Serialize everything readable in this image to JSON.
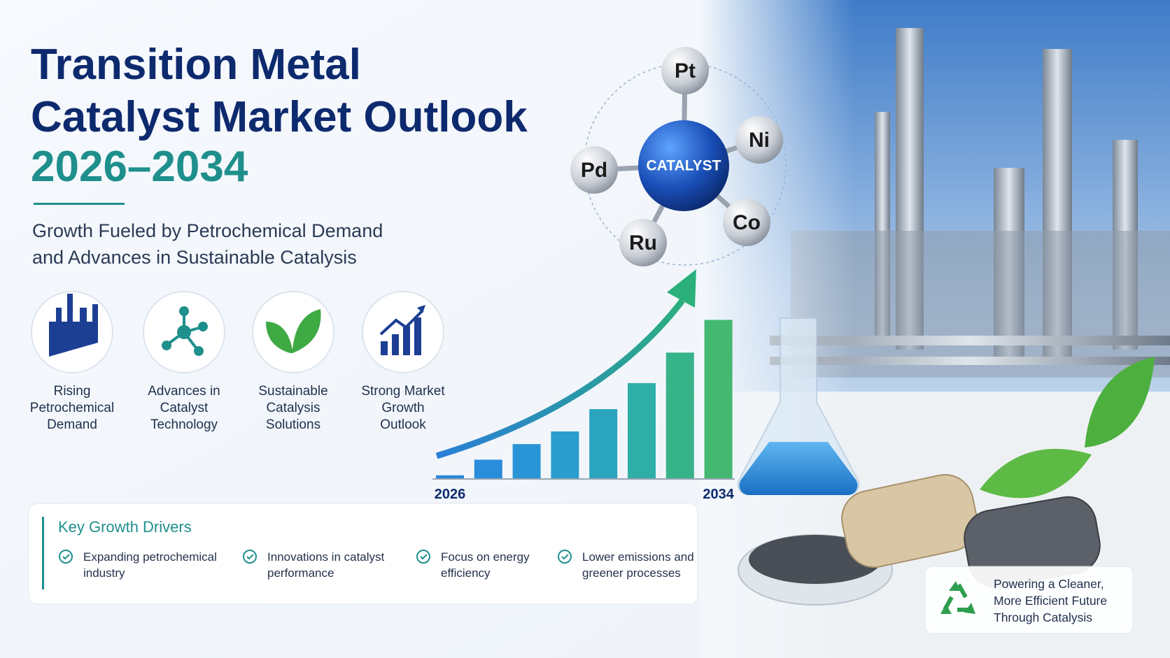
{
  "header": {
    "title_lines": [
      "Transition Metal",
      "Catalyst Market Outlook",
      "2026–2034"
    ],
    "subtitle_lines": [
      "Growth Fueled by Petrochemical Demand",
      "and Advances in Sustainable Catalysis"
    ]
  },
  "features": [
    {
      "label_lines": [
        "Rising",
        "Petrochemical",
        "Demand"
      ]
    },
    {
      "label_lines": [
        "Advances in",
        "Catalyst",
        "Technology"
      ]
    },
    {
      "label_lines": [
        "Sustainable",
        "Catalysis",
        "Solutions"
      ]
    },
    {
      "label_lines": [
        "Strong Market",
        "Growth",
        "Outlook"
      ]
    }
  ],
  "molecule": {
    "center": "CATALYST",
    "atoms": [
      "Pt",
      "Ni",
      "Co",
      "Ru",
      "Pd"
    ]
  },
  "chart_data": {
    "type": "bar",
    "categories": [
      "2026",
      null,
      null,
      null,
      null,
      null,
      null,
      "2034"
    ],
    "values": [
      4,
      25,
      46,
      63,
      93,
      128,
      169,
      213
    ],
    "ylim": [
      0,
      220
    ],
    "colors": [
      "#2a86d9",
      "#2a8ddb",
      "#2a95d6",
      "#2a9dcf",
      "#2ba5bd",
      "#2eaea6",
      "#37b38a",
      "#45b872"
    ]
  },
  "key_drivers": {
    "title": "Key Growth Drivers",
    "items": [
      [
        "Expanding petrochemical",
        "industry"
      ],
      [
        "Innovations in catalyst",
        "performance"
      ],
      [
        "Focus on energy",
        "efficiency"
      ],
      [
        "Lower emissions and",
        "greener processes"
      ]
    ]
  },
  "badge": {
    "lines": [
      "Powering a Cleaner,",
      "More Efficient Future",
      "Through Catalysis"
    ]
  }
}
